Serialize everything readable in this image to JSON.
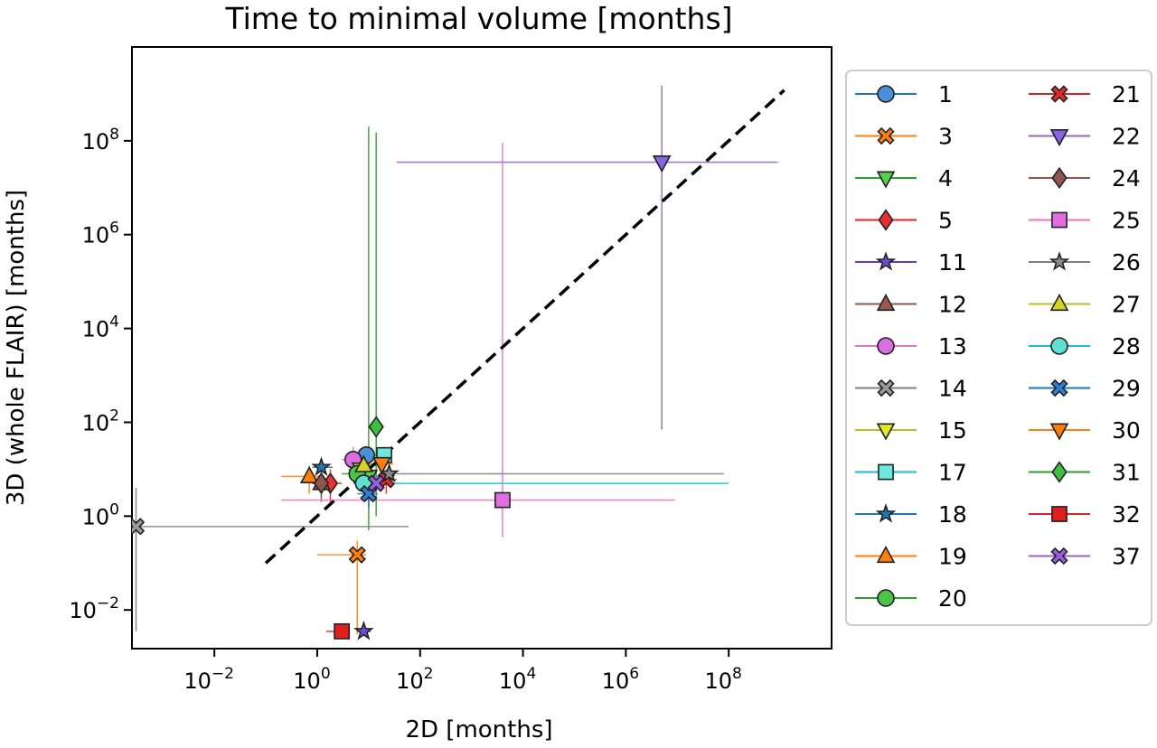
{
  "chart_data": {
    "type": "scatter",
    "title": "Time to minimal volume [months]",
    "xlabel": "2D [months]",
    "ylabel": "3D (whole FLAIR) [months]",
    "x_scale": "log",
    "y_scale": "log",
    "xlim": [
      0.00025,
      10000000000.0
    ],
    "ylim": [
      0.0015,
      10000000000.0
    ],
    "x_ticks": [
      {
        "value": 0.01,
        "base": "10",
        "exp": "−2"
      },
      {
        "value": 1,
        "base": "10",
        "exp": "0"
      },
      {
        "value": 100,
        "base": "10",
        "exp": "2"
      },
      {
        "value": 10000,
        "base": "10",
        "exp": "4"
      },
      {
        "value": 1000000,
        "base": "10",
        "exp": "6"
      },
      {
        "value": 100000000,
        "base": "10",
        "exp": "8"
      }
    ],
    "y_ticks": [
      {
        "value": 0.01,
        "base": "10",
        "exp": "−2"
      },
      {
        "value": 1,
        "base": "10",
        "exp": "0"
      },
      {
        "value": 100,
        "base": "10",
        "exp": "2"
      },
      {
        "value": 10000,
        "base": "10",
        "exp": "4"
      },
      {
        "value": 1000000,
        "base": "10",
        "exp": "6"
      },
      {
        "value": 100000000,
        "base": "10",
        "exp": "8"
      }
    ],
    "grid": false,
    "legend_position": "outside-right",
    "legend_columns": 2,
    "reference_line": {
      "style": "dashed",
      "color": "#000000",
      "x": [
        0.1,
        1200000000.0
      ],
      "y": [
        0.1,
        1200000000.0
      ]
    },
    "series": [
      {
        "name": "1",
        "marker": "circle",
        "color": "#1f77b4",
        "fill": "#4a90d9",
        "x": 9,
        "y": 20,
        "xerr": [
          6,
          14
        ],
        "yerr": [
          12,
          30
        ]
      },
      {
        "name": "3",
        "marker": "x-filled",
        "color": "#ff7f0e",
        "fill": "#ff7f0e",
        "x": 6,
        "y": 0.15,
        "xerr": [
          1,
          9
        ],
        "yerr": [
          0.003,
          0.3
        ]
      },
      {
        "name": "4",
        "marker": "triangle-down",
        "color": "#2ca02c",
        "fill": "#57d14f",
        "x": 10,
        "y": 7,
        "xerr": [
          5,
          18
        ],
        "yerr": [
          0.5,
          200000000.0
        ]
      },
      {
        "name": "5",
        "marker": "diamond",
        "color": "#d62728",
        "fill": "#e8302f",
        "x": 1.8,
        "y": 5,
        "xerr": [
          1,
          3
        ],
        "yerr": [
          2,
          10
        ]
      },
      {
        "name": "11",
        "marker": "star",
        "color": "#5b3fc4",
        "fill": "#6a4fd6",
        "x": 8,
        "y": 0.0035,
        "xerr": [
          6,
          11
        ],
        "yerr": [
          0.003,
          0.004
        ]
      },
      {
        "name": "12",
        "marker": "triangle-up",
        "color": "#8c564b",
        "fill": "#9a5a4f",
        "x": 1.2,
        "y": 5,
        "xerr": [
          0.8,
          2
        ],
        "yerr": [
          2,
          10
        ]
      },
      {
        "name": "13",
        "marker": "circle",
        "color": "#e377c2",
        "fill": "#d96ee0",
        "x": 5,
        "y": 16,
        "xerr": [
          3,
          8
        ],
        "yerr": [
          8,
          30
        ]
      },
      {
        "name": "14",
        "marker": "x-filled",
        "color": "#7f7f7f",
        "fill": "#9a9a9a",
        "x": 0.0003,
        "y": 0.6,
        "xerr": [
          0.0002,
          60
        ],
        "yerr": [
          0.0035,
          4
        ]
      },
      {
        "name": "15",
        "marker": "triangle-down",
        "color": "#bcbd22",
        "fill": "#e5e52a",
        "x": 7,
        "y": 10,
        "xerr": [
          4,
          12
        ],
        "yerr": [
          5,
          16
        ]
      },
      {
        "name": "17",
        "marker": "square",
        "color": "#17becf",
        "fill": "#6be8e0",
        "x": 20,
        "y": 20,
        "xerr": [
          12,
          28
        ],
        "yerr": [
          12,
          30
        ]
      },
      {
        "name": "18",
        "marker": "star",
        "color": "#1f77b4",
        "fill": "#1f77b4",
        "x": 1.2,
        "y": 11,
        "xerr": [
          0.8,
          2
        ],
        "yerr": [
          6,
          16
        ]
      },
      {
        "name": "19",
        "marker": "triangle-up",
        "color": "#ff7f0e",
        "fill": "#ff7f0e",
        "x": 0.7,
        "y": 7,
        "xerr": [
          0.2,
          1.2
        ],
        "yerr": [
          3,
          12
        ]
      },
      {
        "name": "20",
        "marker": "circle",
        "color": "#2ca02c",
        "fill": "#4cc44c",
        "x": 6,
        "y": 8,
        "xerr": [
          3,
          10
        ],
        "yerr": [
          4,
          14
        ]
      },
      {
        "name": "21",
        "marker": "x-filled",
        "color": "#d62728",
        "fill": "#e32b2b",
        "x": 22,
        "y": 6,
        "xerr": [
          14,
          35
        ],
        "yerr": [
          3,
          10
        ]
      },
      {
        "name": "22",
        "marker": "triangle-down",
        "color": "#9467bd",
        "fill": "#8a63e6",
        "x": 5000000.0,
        "y": 35000000.0,
        "xerr": [
          35,
          900000000.0
        ],
        "yerr": [
          70,
          1500000000.0
        ]
      },
      {
        "name": "24",
        "marker": "diamond",
        "color": "#8c564b",
        "fill": "#8c564b",
        "x": 1.2,
        "y": 5,
        "xerr": [
          0.8,
          1.8
        ],
        "yerr": [
          2.5,
          8
        ]
      },
      {
        "name": "25",
        "marker": "square",
        "color": "#e377c2",
        "fill": "#e06ee0",
        "x": 4000,
        "y": 2.2,
        "xerr": [
          0.2,
          9000000.0
        ],
        "yerr": [
          0.35,
          90000000.0
        ]
      },
      {
        "name": "26",
        "marker": "star",
        "color": "#7f7f7f",
        "fill": "#8a8a8a",
        "x": 25,
        "y": 8,
        "xerr": [
          18,
          80000000.0
        ],
        "yerr": [
          5,
          14
        ]
      },
      {
        "name": "27",
        "marker": "triangle-up",
        "color": "#bcbd22",
        "fill": "#d4d625",
        "x": 8,
        "y": 12,
        "xerr": [
          5,
          14
        ],
        "yerr": [
          7,
          18
        ]
      },
      {
        "name": "28",
        "marker": "circle",
        "color": "#17becf",
        "fill": "#5fe0d0",
        "x": 8,
        "y": 5,
        "xerr": [
          5,
          100000000.0
        ],
        "yerr": [
          3,
          8
        ]
      },
      {
        "name": "29",
        "marker": "x-filled",
        "color": "#1f77b4",
        "fill": "#2f7fd6",
        "x": 10,
        "y": 3,
        "xerr": [
          6,
          15
        ],
        "yerr": [
          1.5,
          5
        ]
      },
      {
        "name": "30",
        "marker": "triangle-down",
        "color": "#ff7f0e",
        "fill": "#ff7f0e",
        "x": 18,
        "y": 13,
        "xerr": [
          10,
          30
        ],
        "yerr": [
          5,
          20
        ]
      },
      {
        "name": "31",
        "marker": "diamond",
        "color": "#2ca02c",
        "fill": "#3fbf3f",
        "x": 14,
        "y": 80,
        "xerr": [
          11,
          18
        ],
        "yerr": [
          1,
          150000000.0
        ]
      },
      {
        "name": "32",
        "marker": "square",
        "color": "#d62728",
        "fill": "#e01f1f",
        "x": 3,
        "y": 0.0035,
        "xerr": [
          1.5,
          4
        ],
        "yerr": [
          0.003,
          0.004
        ]
      },
      {
        "name": "37",
        "marker": "x-filled",
        "color": "#9467bd",
        "fill": "#9a5ee6",
        "x": 14,
        "y": 5,
        "xerr": [
          9,
          20
        ],
        "yerr": [
          3,
          8
        ]
      }
    ]
  }
}
